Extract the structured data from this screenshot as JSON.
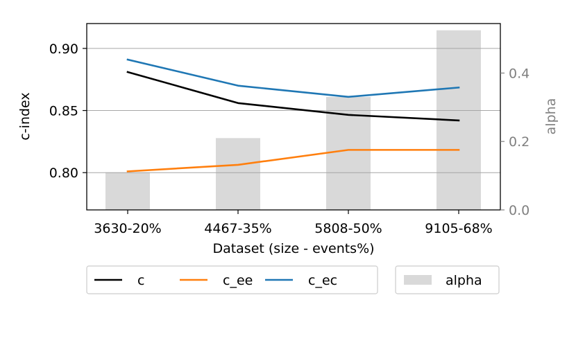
{
  "chart_data": {
    "type": "bar+line",
    "title": "",
    "categories": [
      "3630-20%",
      "4467-35%",
      "5808-50%",
      "9105-68%"
    ],
    "xlabel": "Dataset (size - events%)",
    "ylabel": "c-index",
    "ylabel_right": "alpha",
    "ylim": [
      0.77,
      0.92
    ],
    "ylim_right": [
      0.0,
      0.5447
    ],
    "yticks": [
      "0.80",
      "0.85",
      "0.90"
    ],
    "yticks_right": [
      "0.0",
      "0.2",
      "0.4"
    ],
    "grid": true,
    "series": [
      {
        "name": "c",
        "axis": "left",
        "kind": "line",
        "color": "#000000",
        "values": [
          0.881,
          0.856,
          0.8465,
          0.842
        ]
      },
      {
        "name": "c_ee",
        "axis": "left",
        "kind": "line",
        "color": "#ff7f0e",
        "values": [
          0.801,
          0.8063,
          0.8183,
          0.8183
        ]
      },
      {
        "name": "c_ec",
        "axis": "left",
        "kind": "line",
        "color": "#1f77b4",
        "values": [
          0.891,
          0.87,
          0.861,
          0.8685
        ]
      },
      {
        "name": "alpha",
        "axis": "right",
        "kind": "bar",
        "color": "#d9d9d9",
        "values": [
          0.11,
          0.21,
          0.33,
          0.525
        ]
      }
    ],
    "legend": {
      "placement": "bottom-center",
      "groups": [
        [
          "c",
          "c_ee",
          "c_ec"
        ],
        [
          "alpha"
        ]
      ]
    }
  }
}
